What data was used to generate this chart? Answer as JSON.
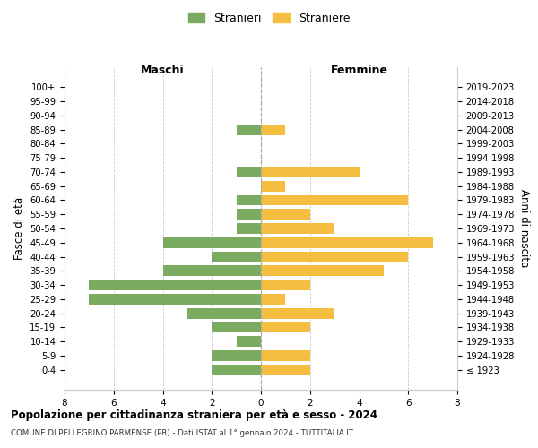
{
  "age_groups": [
    "100+",
    "95-99",
    "90-94",
    "85-89",
    "80-84",
    "75-79",
    "70-74",
    "65-69",
    "60-64",
    "55-59",
    "50-54",
    "45-49",
    "40-44",
    "35-39",
    "30-34",
    "25-29",
    "20-24",
    "15-19",
    "10-14",
    "5-9",
    "0-4"
  ],
  "birth_years": [
    "≤ 1923",
    "1924-1928",
    "1929-1933",
    "1934-1938",
    "1939-1943",
    "1944-1948",
    "1949-1953",
    "1954-1958",
    "1959-1963",
    "1964-1968",
    "1969-1973",
    "1974-1978",
    "1979-1983",
    "1984-1988",
    "1989-1993",
    "1994-1998",
    "1999-2003",
    "2004-2008",
    "2009-2013",
    "2014-2018",
    "2019-2023"
  ],
  "maschi": [
    0,
    0,
    0,
    1,
    0,
    0,
    1,
    0,
    1,
    1,
    1,
    4,
    2,
    4,
    7,
    7,
    3,
    2,
    1,
    2,
    2
  ],
  "femmine": [
    0,
    0,
    0,
    1,
    0,
    0,
    4,
    1,
    6,
    2,
    3,
    7,
    6,
    5,
    2,
    1,
    3,
    2,
    0,
    2,
    2
  ],
  "color_maschi": "#7aab60",
  "color_femmine": "#f5be41",
  "title_main": "Popolazione per cittadinanza straniera per età e sesso - 2024",
  "title_sub": "COMUNE DI PELLEGRINO PARMENSE (PR) - Dati ISTAT al 1° gennaio 2024 - TUTTITALIA.IT",
  "xlabel_left": "Maschi",
  "xlabel_right": "Femmine",
  "ylabel": "Fasce di età",
  "ylabel_right": "Anni di nascita",
  "legend_maschi": "Stranieri",
  "legend_femmine": "Straniere",
  "xlim": 8,
  "background_color": "#ffffff",
  "grid_color": "#cccccc"
}
